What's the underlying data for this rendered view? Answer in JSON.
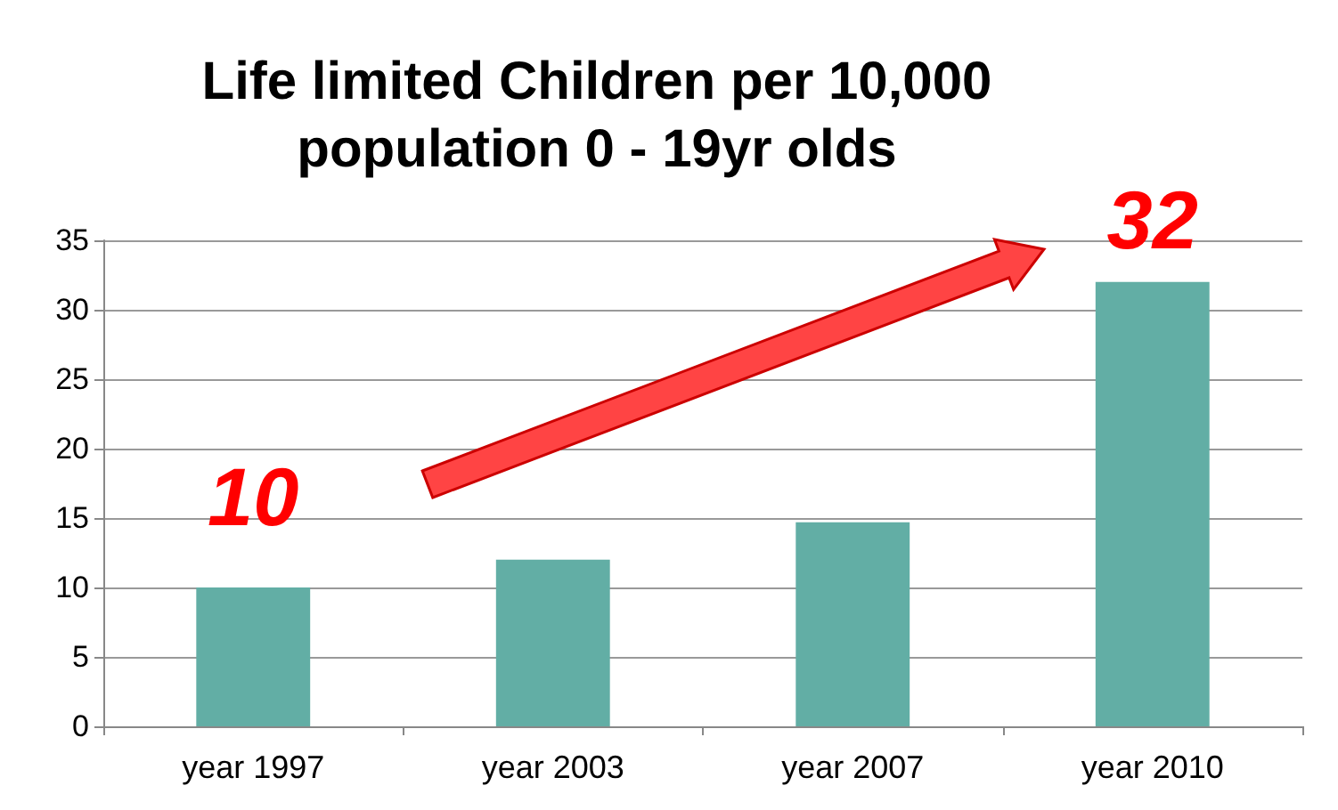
{
  "chart_data": {
    "type": "bar",
    "title": "Life limited Children per 10,000\npopulation 0 - 19yr olds",
    "categories": [
      "year 1997",
      "year 2003",
      "year 2007",
      "year 2010"
    ],
    "values": [
      10,
      12,
      14.7,
      32
    ],
    "color": "#62aea5",
    "value_labels": [
      "10",
      null,
      null,
      "32"
    ],
    "ylim": [
      0,
      35
    ],
    "yticks": [
      0,
      5,
      10,
      15,
      20,
      25,
      30,
      35
    ],
    "grid": "y"
  }
}
